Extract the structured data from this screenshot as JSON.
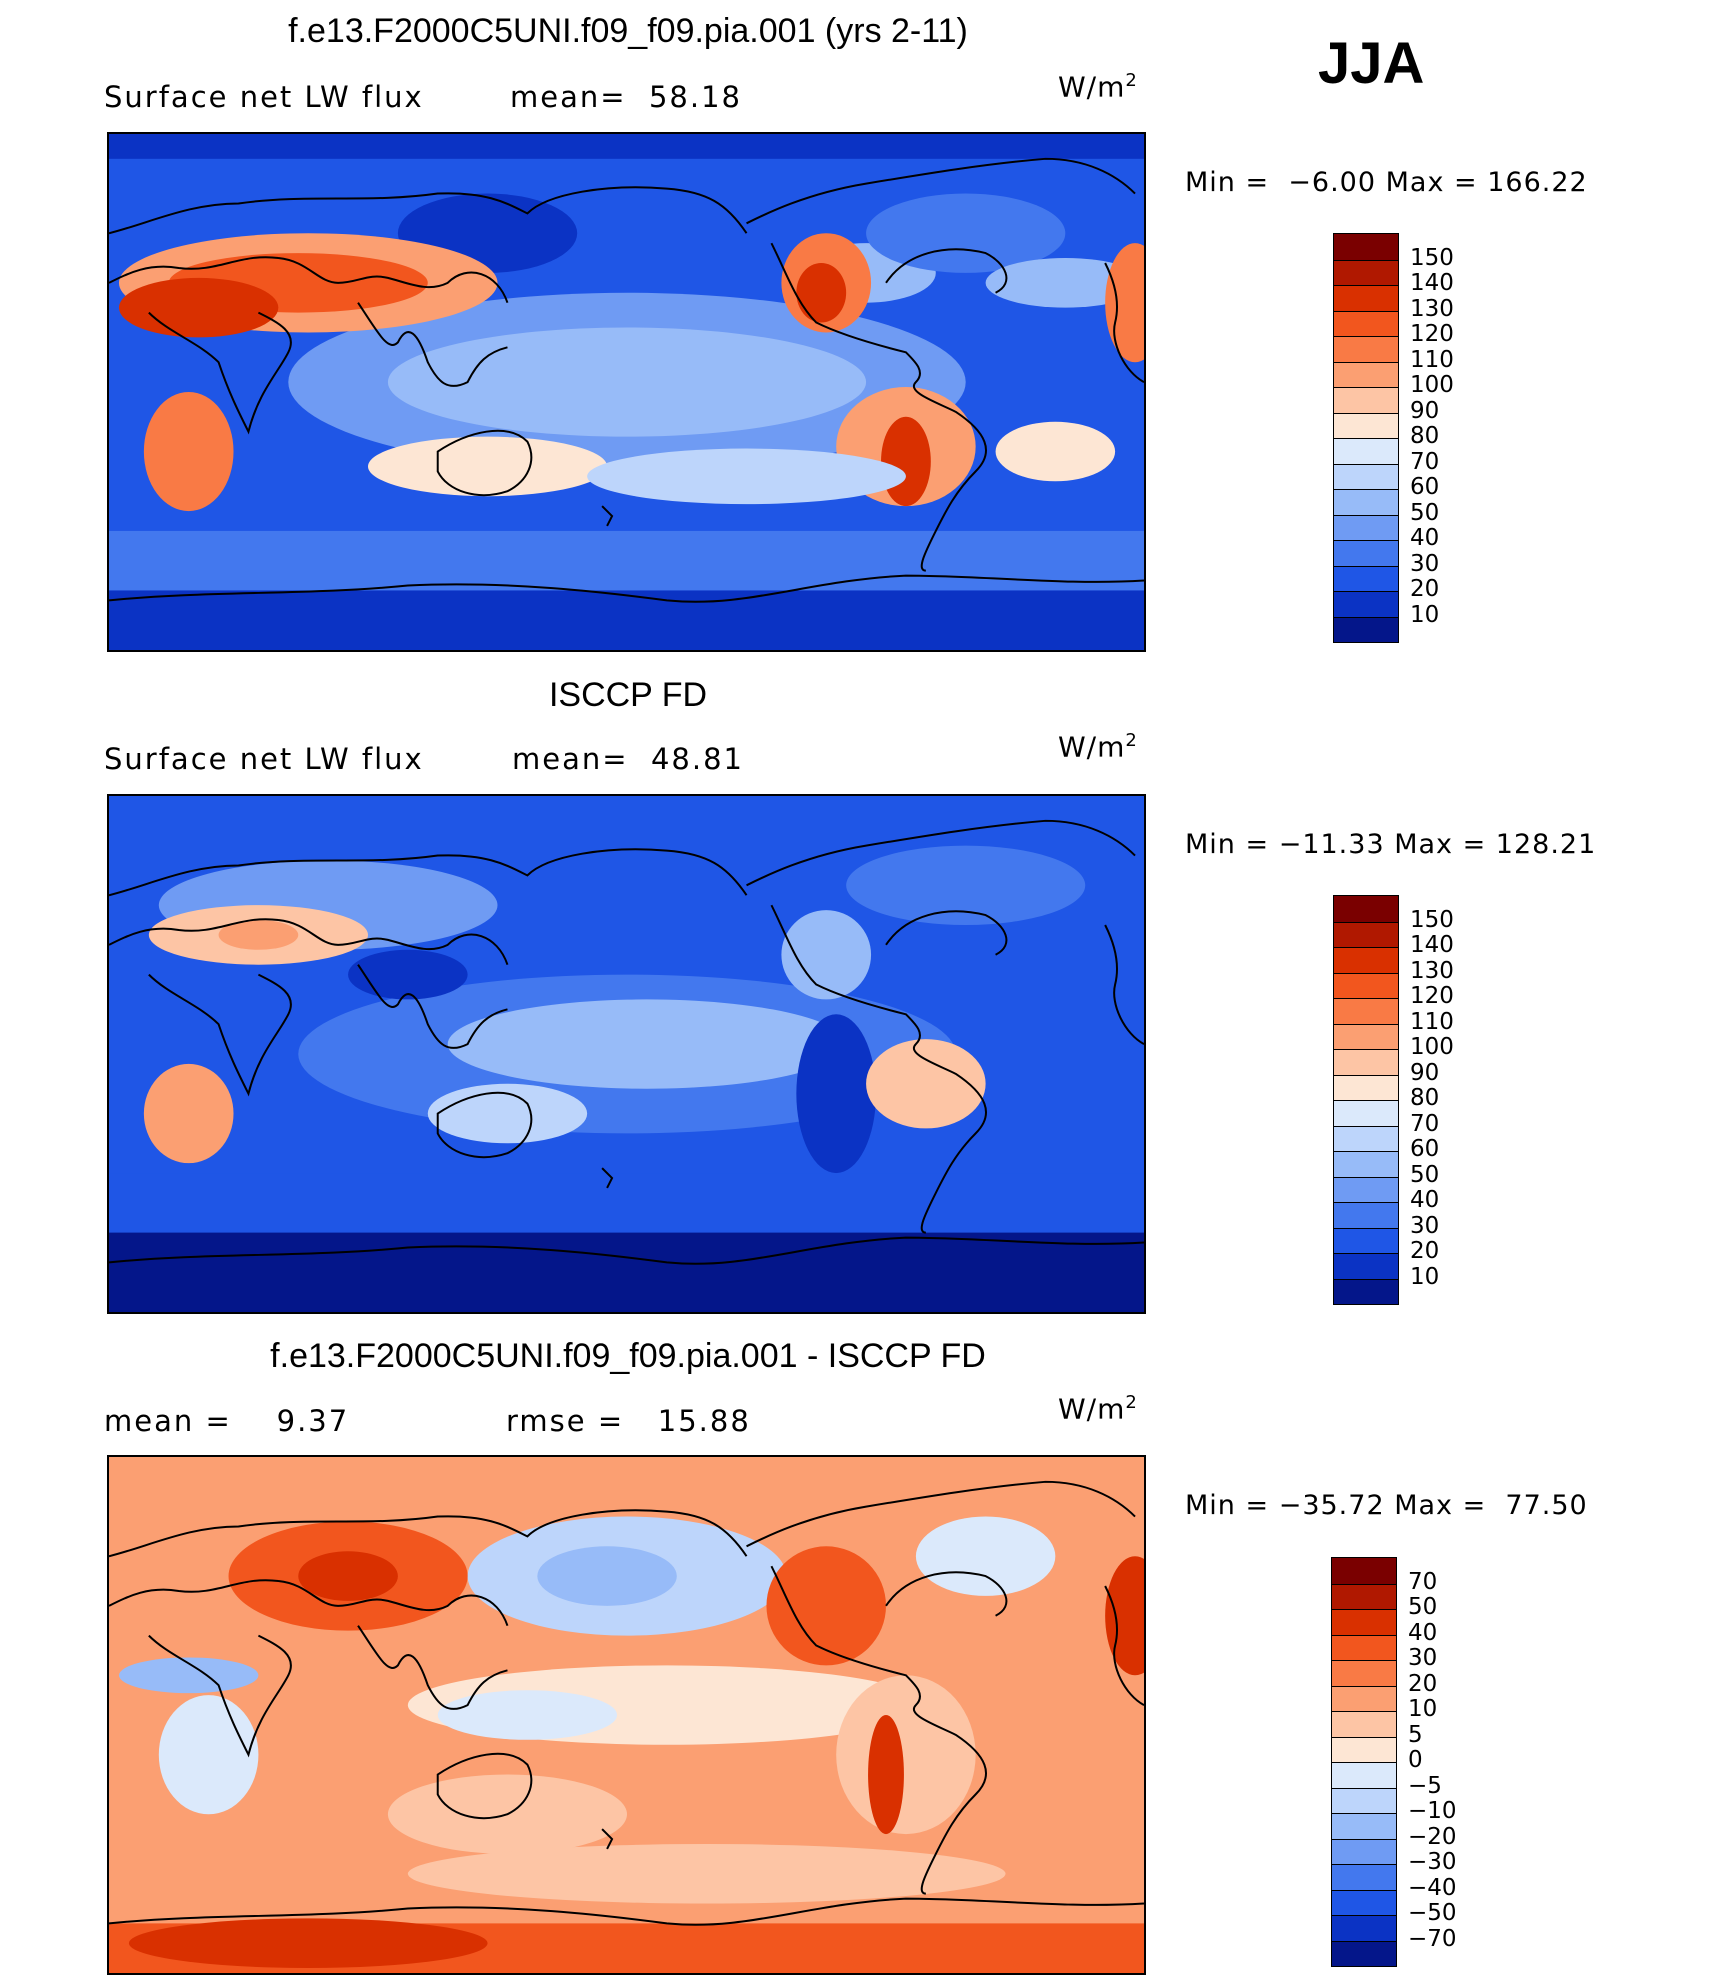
{
  "season": "JJA",
  "unit_base": "W/m",
  "unit_exp": "2",
  "panels": [
    {
      "title": "f.e13.F2000C5UNI.f09_f09.pia.001 (yrs 2-11)",
      "left_stat": "Surface net LW flux",
      "right_stat": "mean=  58.18",
      "minmax": "Min =  −6.00 Max = 166.22",
      "variant": "abs"
    },
    {
      "title": "ISCCP FD",
      "left_stat": "Surface net LW flux",
      "right_stat": "mean=  48.81",
      "minmax": "Min = −11.33 Max = 128.21",
      "variant": "obs"
    },
    {
      "title": "f.e13.F2000C5UNI.f09_f09.pia.001 - ISCCP FD",
      "left_stat": "mean =    9.37",
      "right_stat": "rmse =   15.88",
      "minmax": "Min = −35.72 Max =  77.50",
      "variant": "diff"
    }
  ],
  "colorbar_abs": {
    "labels": [
      "150",
      "140",
      "130",
      "120",
      "110",
      "100",
      "90",
      "80",
      "70",
      "60",
      "50",
      "40",
      "30",
      "20",
      "10"
    ],
    "colors": [
      "#7a0000",
      "#b01800",
      "#d93000",
      "#f2561e",
      "#f97a45",
      "#fb9f72",
      "#fdc5a5",
      "#fde6d4",
      "#dbe9fb",
      "#bdd5fb",
      "#97bbf8",
      "#6f9bf3",
      "#4378ee",
      "#1f56e6",
      "#0b33c4",
      "#04168a"
    ]
  },
  "colorbar_diff": {
    "labels": [
      "70",
      "50",
      "40",
      "30",
      "20",
      "10",
      "5",
      "0",
      "−5",
      "−10",
      "−20",
      "−30",
      "−40",
      "−50",
      "−70"
    ],
    "colors": [
      "#7a0000",
      "#b01800",
      "#d93000",
      "#f2561e",
      "#f97a45",
      "#fb9f72",
      "#fdc5a5",
      "#fde6d4",
      "#dbe9fb",
      "#bdd5fb",
      "#97bbf8",
      "#6f9bf3",
      "#4378ee",
      "#1f56e6",
      "#0b33c4",
      "#04168a"
    ]
  }
}
